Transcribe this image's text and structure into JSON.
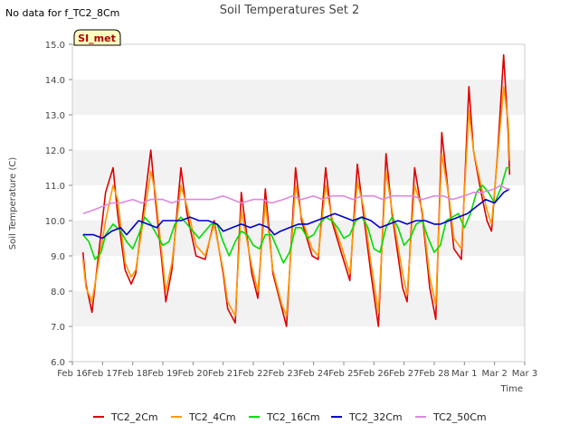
{
  "no_data_note": "No data for f_TC2_8Cm",
  "badge_label": "SI_met",
  "chart_data": {
    "type": "line",
    "title": "Soil Temperatures Set 2",
    "xlabel": "Time",
    "ylabel": "Soil Temperature (C)",
    "ylim": [
      6.0,
      15.0
    ],
    "xlim": [
      0,
      15
    ],
    "grid": "horizontal bands",
    "legend_position": "bottom",
    "x_tick_labels": [
      "Feb 16",
      "Feb 17",
      "Feb 18",
      "Feb 19",
      "Feb 20",
      "Feb 21",
      "Feb 22",
      "Feb 23",
      "Feb 24",
      "Feb 25",
      "Feb 26",
      "Feb 27",
      "Feb 28",
      "Mar 1",
      "Mar 2",
      "Mar 3"
    ],
    "y_ticks": [
      6.0,
      7.0,
      8.0,
      9.0,
      10.0,
      11.0,
      12.0,
      13.0,
      14.0,
      15.0
    ],
    "y_tick_labels": [
      "6.0",
      "7.0",
      "8.0",
      "9.0",
      "10.0",
      "11.0",
      "12.0",
      "13.0",
      "14.0",
      "15.0"
    ],
    "series": [
      {
        "name": "TC2_2Cm",
        "color": "#dd0000",
        "x": [
          0.35,
          0.45,
          0.65,
          1.1,
          1.35,
          1.5,
          1.75,
          1.95,
          2.1,
          2.6,
          2.75,
          2.95,
          3.1,
          3.3,
          3.6,
          3.8,
          4.1,
          4.4,
          4.7,
          5.0,
          5.15,
          5.4,
          5.6,
          5.95,
          6.15,
          6.4,
          6.65,
          6.95,
          7.1,
          7.4,
          7.6,
          7.95,
          8.15,
          8.4,
          8.6,
          8.95,
          9.2,
          9.45,
          9.65,
          9.9,
          10.15,
          10.4,
          10.6,
          10.95,
          11.1,
          11.35,
          11.6,
          11.85,
          12.05,
          12.25,
          12.5,
          12.65,
          12.9,
          13.15,
          13.3,
          13.55,
          13.75,
          13.9,
          14.1,
          14.3,
          14.45,
          14.5
        ],
        "y": [
          9.1,
          8.2,
          7.4,
          10.8,
          11.5,
          10.2,
          8.6,
          8.2,
          8.5,
          12.0,
          10.6,
          9.0,
          7.7,
          8.6,
          11.5,
          10.2,
          9.0,
          8.9,
          10.0,
          8.5,
          7.5,
          7.1,
          10.8,
          8.5,
          7.8,
          10.9,
          8.5,
          7.5,
          7.0,
          11.5,
          10.0,
          9.0,
          8.9,
          11.5,
          10.0,
          9.0,
          8.3,
          11.6,
          10.2,
          8.5,
          7.0,
          11.9,
          10.2,
          8.1,
          7.7,
          11.5,
          10.2,
          8.1,
          7.2,
          12.5,
          10.5,
          9.2,
          8.9,
          13.8,
          12.0,
          10.8,
          10.0,
          9.7,
          11.9,
          14.7,
          12.5,
          11.3
        ]
      },
      {
        "name": "TC2_4Cm",
        "color": "#ff9900",
        "x": [
          0.35,
          0.45,
          0.65,
          1.1,
          1.35,
          1.5,
          1.75,
          1.95,
          2.1,
          2.6,
          2.75,
          2.95,
          3.1,
          3.3,
          3.6,
          3.8,
          4.1,
          4.4,
          4.7,
          5.0,
          5.15,
          5.4,
          5.6,
          5.95,
          6.15,
          6.4,
          6.65,
          6.95,
          7.1,
          7.4,
          7.6,
          7.95,
          8.15,
          8.4,
          8.6,
          8.95,
          9.2,
          9.45,
          9.65,
          9.9,
          10.15,
          10.4,
          10.6,
          10.95,
          11.1,
          11.35,
          11.6,
          11.85,
          12.05,
          12.25,
          12.5,
          12.65,
          12.9,
          13.15,
          13.3,
          13.55,
          13.75,
          13.9,
          14.1,
          14.3,
          14.45,
          14.5
        ],
        "y": [
          8.9,
          8.1,
          7.7,
          10.0,
          11.0,
          10.6,
          8.8,
          8.4,
          8.6,
          11.4,
          10.8,
          9.2,
          8.0,
          8.8,
          11.0,
          10.4,
          9.3,
          9.0,
          9.9,
          8.6,
          7.7,
          7.3,
          10.3,
          8.7,
          8.0,
          10.5,
          8.6,
          7.6,
          7.3,
          11.0,
          10.1,
          9.2,
          9.0,
          11.0,
          10.1,
          9.2,
          8.5,
          11.1,
          10.4,
          8.8,
          7.4,
          11.4,
          10.3,
          8.5,
          7.9,
          11.0,
          10.3,
          8.4,
          7.6,
          11.9,
          10.6,
          9.5,
          9.2,
          13.1,
          12.0,
          11.0,
          10.3,
          9.9,
          11.8,
          13.8,
          12.8,
          11.7
        ]
      },
      {
        "name": "TC2_16Cm",
        "color": "#00dd00",
        "x": [
          0.35,
          0.55,
          0.75,
          0.95,
          1.1,
          1.35,
          1.6,
          1.8,
          2.0,
          2.2,
          2.4,
          2.6,
          2.8,
          3.0,
          3.2,
          3.4,
          3.6,
          3.8,
          4.0,
          4.2,
          4.4,
          4.6,
          4.8,
          5.0,
          5.2,
          5.4,
          5.6,
          5.8,
          6.0,
          6.2,
          6.4,
          6.6,
          6.8,
          7.0,
          7.2,
          7.4,
          7.6,
          7.8,
          8.0,
          8.2,
          8.4,
          8.6,
          8.8,
          9.0,
          9.2,
          9.4,
          9.6,
          9.8,
          10.0,
          10.2,
          10.4,
          10.6,
          10.8,
          11.0,
          11.2,
          11.4,
          11.6,
          11.8,
          12.0,
          12.2,
          12.4,
          12.6,
          12.8,
          13.0,
          13.2,
          13.4,
          13.6,
          13.8,
          14.0,
          14.2,
          14.4,
          14.5
        ],
        "y": [
          9.6,
          9.4,
          8.9,
          9.1,
          9.6,
          9.9,
          9.7,
          9.4,
          9.2,
          9.6,
          10.1,
          9.9,
          9.6,
          9.3,
          9.4,
          9.9,
          10.1,
          9.9,
          9.7,
          9.5,
          9.7,
          9.9,
          9.9,
          9.4,
          9.0,
          9.4,
          9.7,
          9.6,
          9.3,
          9.2,
          9.6,
          9.6,
          9.2,
          8.8,
          9.1,
          9.8,
          9.8,
          9.5,
          9.6,
          9.9,
          10.1,
          10.0,
          9.8,
          9.5,
          9.6,
          10.0,
          10.1,
          9.8,
          9.2,
          9.1,
          9.8,
          10.1,
          9.8,
          9.3,
          9.5,
          9.9,
          10.0,
          9.5,
          9.1,
          9.3,
          10.0,
          10.1,
          10.2,
          9.8,
          10.2,
          10.8,
          11.0,
          10.8,
          10.5,
          10.9,
          11.5,
          11.5
        ]
      },
      {
        "name": "TC2_32Cm",
        "color": "#0000cc",
        "x": [
          0.35,
          0.7,
          1.0,
          1.3,
          1.6,
          1.8,
          2.0,
          2.2,
          2.5,
          2.8,
          3.0,
          3.3,
          3.6,
          3.9,
          4.2,
          4.5,
          4.8,
          5.0,
          5.3,
          5.6,
          5.9,
          6.2,
          6.5,
          6.7,
          6.9,
          7.2,
          7.5,
          7.8,
          8.1,
          8.4,
          8.7,
          9.0,
          9.3,
          9.6,
          9.9,
          10.2,
          10.5,
          10.8,
          11.1,
          11.4,
          11.7,
          12.0,
          12.2,
          12.5,
          12.8,
          13.1,
          13.4,
          13.7,
          14.0,
          14.3,
          14.5
        ],
        "y": [
          9.6,
          9.6,
          9.5,
          9.7,
          9.8,
          9.6,
          9.8,
          10.0,
          9.9,
          9.8,
          10.0,
          10.0,
          10.0,
          10.1,
          10.0,
          10.0,
          9.9,
          9.7,
          9.8,
          9.9,
          9.8,
          9.9,
          9.8,
          9.6,
          9.7,
          9.8,
          9.9,
          9.9,
          10.0,
          10.1,
          10.2,
          10.1,
          10.0,
          10.1,
          10.0,
          9.8,
          9.9,
          10.0,
          9.9,
          10.0,
          10.0,
          9.9,
          9.9,
          10.0,
          10.1,
          10.2,
          10.4,
          10.6,
          10.5,
          10.8,
          10.9
        ]
      },
      {
        "name": "TC2_50Cm",
        "color": "#dd88dd",
        "x": [
          0.35,
          0.7,
          1.0,
          1.3,
          1.6,
          2.0,
          2.3,
          2.6,
          3.0,
          3.3,
          3.6,
          4.0,
          4.3,
          4.6,
          5.0,
          5.3,
          5.6,
          6.0,
          6.3,
          6.6,
          7.0,
          7.3,
          7.6,
          8.0,
          8.3,
          8.6,
          9.0,
          9.3,
          9.6,
          10.0,
          10.3,
          10.6,
          11.0,
          11.3,
          11.6,
          12.0,
          12.3,
          12.6,
          13.0,
          13.3,
          13.6,
          14.0,
          14.2,
          14.4,
          14.5
        ],
        "y": [
          10.2,
          10.3,
          10.4,
          10.5,
          10.5,
          10.6,
          10.5,
          10.6,
          10.6,
          10.5,
          10.6,
          10.6,
          10.6,
          10.6,
          10.7,
          10.6,
          10.5,
          10.6,
          10.6,
          10.5,
          10.6,
          10.7,
          10.6,
          10.7,
          10.6,
          10.7,
          10.7,
          10.6,
          10.7,
          10.7,
          10.6,
          10.7,
          10.7,
          10.7,
          10.6,
          10.7,
          10.7,
          10.6,
          10.7,
          10.8,
          10.8,
          10.9,
          11.0,
          10.9,
          10.9
        ]
      }
    ]
  }
}
